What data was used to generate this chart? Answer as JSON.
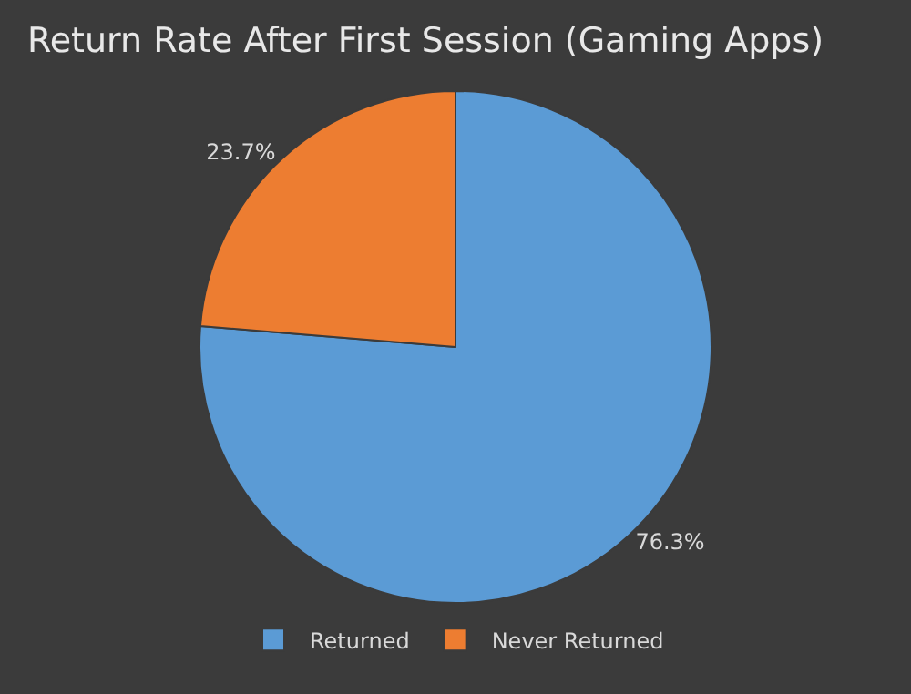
{
  "chart_data": {
    "type": "pie",
    "title": "Return Rate After First Session (Gaming Apps)",
    "categories": [
      "Returned",
      "Never Returned"
    ],
    "values": [
      76.3,
      23.7
    ],
    "colors": [
      "#5b9bd5",
      "#ed7d31"
    ],
    "value_labels": [
      "76.3%",
      "23.7%"
    ],
    "legend": "bottom"
  }
}
